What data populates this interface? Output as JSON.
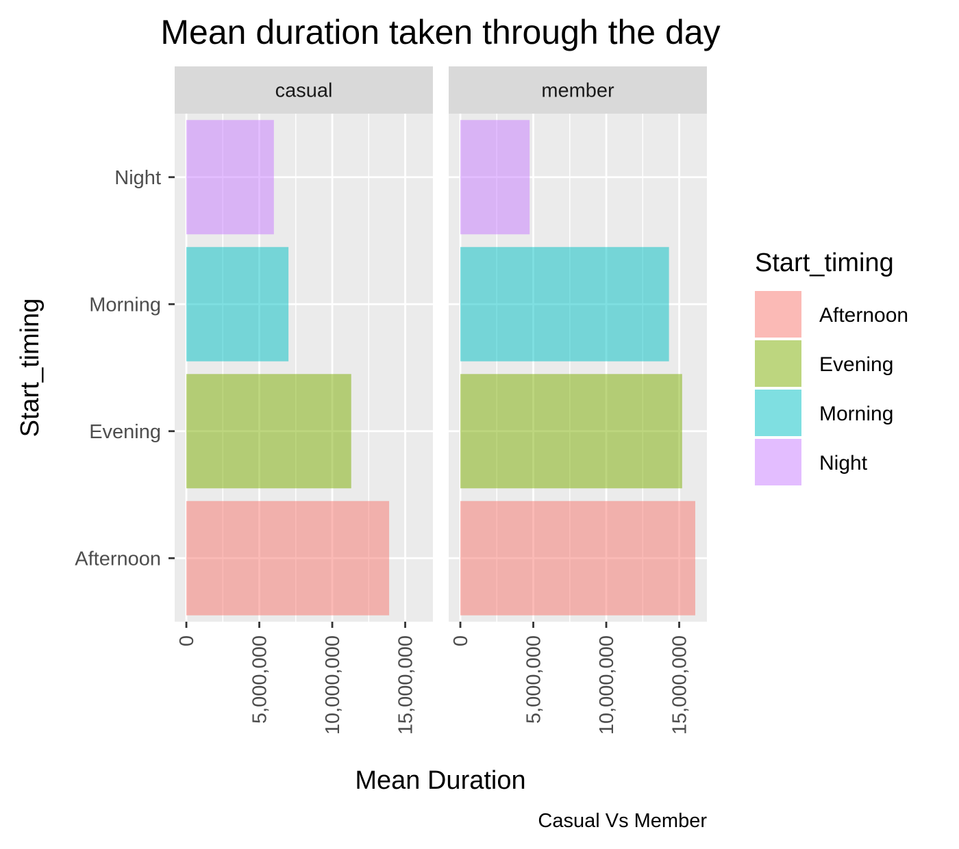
{
  "chart_data": {
    "type": "bar",
    "orientation": "horizontal",
    "title": "Mean duration taken through the day",
    "xlabel": "Mean Duration",
    "ylabel": "Start_timing",
    "caption": "Casual Vs Member",
    "categories": [
      "Afternoon",
      "Evening",
      "Morning",
      "Night"
    ],
    "x_ticks": [
      0,
      5000000,
      10000000,
      15000000
    ],
    "x_tick_labels": [
      "0",
      "5,000,000",
      "10,000,000",
      "15,000,000"
    ],
    "xlim": [
      -800000,
      16900000
    ],
    "grid": true,
    "facets": [
      {
        "name": "casual",
        "values": [
          13900000,
          11300000,
          7000000,
          6000000
        ]
      },
      {
        "name": "member",
        "values": [
          16100000,
          15200000,
          14300000,
          4750000
        ]
      }
    ],
    "legend": {
      "title": "Start_timing",
      "position": "right",
      "entries": [
        {
          "label": "Afternoon",
          "color": "#F8766D"
        },
        {
          "label": "Evening",
          "color": "#7CAE00"
        },
        {
          "label": "Morning",
          "color": "#00BFC4"
        },
        {
          "label": "Night",
          "color": "#C77CFF"
        }
      ]
    },
    "bar_opacity": 0.5
  }
}
